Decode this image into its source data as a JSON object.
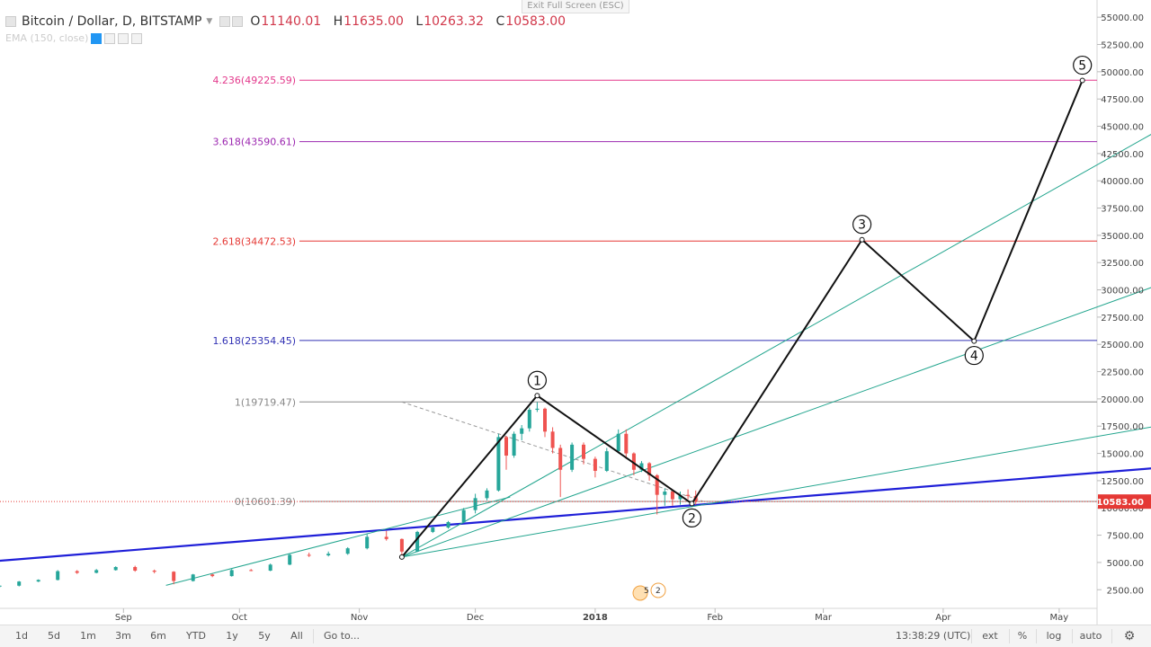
{
  "header": {
    "symbol": "Bitcoin / Dollar, D, BITSTAMP",
    "open_label": "O",
    "open": "11140.01",
    "high_label": "H",
    "high": "11635.00",
    "low_label": "L",
    "low": "10263.32",
    "close_label": "C",
    "close": "10583.00",
    "indicator": "EMA (150, close)",
    "exit_fullscreen": "Exit Full Screen (ESC)"
  },
  "toolbar": {
    "ranges": [
      "1d",
      "5d",
      "1m",
      "3m",
      "6m",
      "YTD",
      "1y",
      "5y",
      "All"
    ],
    "goto": "Go to...",
    "clock": "13:38:29 (UTC)",
    "options": [
      "ext",
      "%",
      "log",
      "auto"
    ],
    "settings_icon": "gear-icon"
  },
  "colors": {
    "up": "#26a69a",
    "down": "#ef5350",
    "trend": "#1f1fd8",
    "fan": "#22a58e",
    "fib_4236": "#e3398c",
    "fib_3618": "#9c27b0",
    "fib_2618": "#e53935",
    "fib_1618": "#3232b4",
    "fib_1": "#888888",
    "fib_0": "#888888",
    "price_tag": "#e53935"
  },
  "chart_data": {
    "type": "line",
    "title": "Bitcoin / Dollar, D, BITSTAMP",
    "y_ticks": [
      "55000.00",
      "52500.00",
      "50000.00",
      "47500.00",
      "45000.00",
      "42500.00",
      "40000.00",
      "37500.00",
      "35000.00",
      "32500.00",
      "30000.00",
      "27500.00",
      "25000.00",
      "22500.00",
      "20000.00",
      "17500.00",
      "15000.00",
      "12500.00",
      "10000.00",
      "7500.00",
      "5000.00",
      "2500.00"
    ],
    "ylim": [
      0,
      56250
    ],
    "x_ticks": [
      "Sep",
      "Oct",
      "Nov",
      "Dec",
      "2018",
      "Feb",
      "Mar",
      "Apr",
      "May"
    ],
    "last_price": "10583.00",
    "fib_levels": [
      {
        "label": "4.236(49225.59)",
        "value": 49225.59,
        "color_key": "fib_4236"
      },
      {
        "label": "3.618(43590.61)",
        "value": 43590.61,
        "color_key": "fib_3618"
      },
      {
        "label": "2.618(34472.53)",
        "value": 34472.53,
        "color_key": "fib_2618"
      },
      {
        "label": "1.618(25354.45)",
        "value": 25354.45,
        "color_key": "fib_1618"
      },
      {
        "label": "1(19719.47)",
        "value": 19719.47,
        "color_key": "fib_1"
      },
      {
        "label": "0(10601.39)",
        "value": 10601.39,
        "color_key": "fib_0"
      }
    ],
    "wave_points": [
      {
        "label": "",
        "date": "2017-11-12",
        "value": 5500
      },
      {
        "label": "1",
        "date": "2017-12-17",
        "value": 20300
      },
      {
        "label": "2",
        "date": "2018-01-26",
        "value": 10400
      },
      {
        "label": "3",
        "date": "2018-03-11",
        "value": 34600
      },
      {
        "label": "4",
        "date": "2018-04-09",
        "value": 25300
      },
      {
        "label": "5",
        "date": "2018-05-07",
        "value": 49200
      }
    ],
    "trendlines": [
      {
        "kind": "support",
        "from": {
          "date": "2017-07-29",
          "value": 5100
        },
        "to": {
          "date": "2018-05-31",
          "value": 13800
        }
      },
      {
        "kind": "fan",
        "from": {
          "date": "2017-11-12",
          "value": 5500
        },
        "to": {
          "date": "2018-05-31",
          "value": 45500
        }
      },
      {
        "kind": "fan",
        "from": {
          "date": "2017-11-12",
          "value": 5500
        },
        "to": {
          "date": "2018-05-31",
          "value": 31000
        }
      },
      {
        "kind": "fan",
        "from": {
          "date": "2017-11-12",
          "value": 5500
        },
        "to": {
          "date": "2018-05-31",
          "value": 17800
        }
      },
      {
        "kind": "channel",
        "from": {
          "date": "2017-09-12",
          "value": 2900
        },
        "to": {
          "date": "2017-12-10",
          "value": 11000
        }
      }
    ],
    "dashed_line": {
      "from": {
        "date": "2017-11-12",
        "value": 19719.47
      },
      "to": {
        "date": "2018-01-29",
        "value": 10600
      }
    },
    "candles": [
      {
        "date": "2017-07-31",
        "o": 2800,
        "h": 2900,
        "l": 2700,
        "c": 2870
      },
      {
        "date": "2017-08-05",
        "o": 2870,
        "h": 3300,
        "l": 2800,
        "c": 3250
      },
      {
        "date": "2017-08-10",
        "o": 3250,
        "h": 3450,
        "l": 3200,
        "c": 3400
      },
      {
        "date": "2017-08-15",
        "o": 3400,
        "h": 4300,
        "l": 3350,
        "c": 4200
      },
      {
        "date": "2017-08-20",
        "o": 4200,
        "h": 4300,
        "l": 3950,
        "c": 4050
      },
      {
        "date": "2017-08-25",
        "o": 4050,
        "h": 4400,
        "l": 4000,
        "c": 4300
      },
      {
        "date": "2017-08-30",
        "o": 4300,
        "h": 4650,
        "l": 4250,
        "c": 4580
      },
      {
        "date": "2017-09-04",
        "o": 4580,
        "h": 4700,
        "l": 4150,
        "c": 4250
      },
      {
        "date": "2017-09-09",
        "o": 4250,
        "h": 4350,
        "l": 4000,
        "c": 4150
      },
      {
        "date": "2017-09-14",
        "o": 4150,
        "h": 4200,
        "l": 3000,
        "c": 3300
      },
      {
        "date": "2017-09-19",
        "o": 3300,
        "h": 3950,
        "l": 3250,
        "c": 3900
      },
      {
        "date": "2017-09-24",
        "o": 3900,
        "h": 3950,
        "l": 3650,
        "c": 3750
      },
      {
        "date": "2017-09-29",
        "o": 3750,
        "h": 4400,
        "l": 3700,
        "c": 4300
      },
      {
        "date": "2017-10-04",
        "o": 4300,
        "h": 4400,
        "l": 4200,
        "c": 4250
      },
      {
        "date": "2017-10-09",
        "o": 4250,
        "h": 4900,
        "l": 4200,
        "c": 4800
      },
      {
        "date": "2017-10-14",
        "o": 4800,
        "h": 5800,
        "l": 4750,
        "c": 5700
      },
      {
        "date": "2017-10-19",
        "o": 5700,
        "h": 5900,
        "l": 5500,
        "c": 5650
      },
      {
        "date": "2017-10-24",
        "o": 5650,
        "h": 6000,
        "l": 5550,
        "c": 5800
      },
      {
        "date": "2017-10-29",
        "o": 5800,
        "h": 6400,
        "l": 5700,
        "c": 6300
      },
      {
        "date": "2017-11-03",
        "o": 6300,
        "h": 7600,
        "l": 6200,
        "c": 7350
      },
      {
        "date": "2017-11-08",
        "o": 7350,
        "h": 7900,
        "l": 7000,
        "c": 7150
      },
      {
        "date": "2017-11-12",
        "o": 7150,
        "h": 7200,
        "l": 5550,
        "c": 6000
      },
      {
        "date": "2017-11-16",
        "o": 6000,
        "h": 7900,
        "l": 5950,
        "c": 7800
      },
      {
        "date": "2017-11-20",
        "o": 7800,
        "h": 8300,
        "l": 7700,
        "c": 8200
      },
      {
        "date": "2017-11-24",
        "o": 8200,
        "h": 8800,
        "l": 8100,
        "c": 8700
      },
      {
        "date": "2017-11-28",
        "o": 8700,
        "h": 10000,
        "l": 8600,
        "c": 9800
      },
      {
        "date": "2017-12-01",
        "o": 9800,
        "h": 11300,
        "l": 9500,
        "c": 10900
      },
      {
        "date": "2017-12-04",
        "o": 10900,
        "h": 11800,
        "l": 10700,
        "c": 11600
      },
      {
        "date": "2017-12-07",
        "o": 11600,
        "h": 16800,
        "l": 11500,
        "c": 16500
      },
      {
        "date": "2017-12-09",
        "o": 16500,
        "h": 16600,
        "l": 13500,
        "c": 14800
      },
      {
        "date": "2017-12-11",
        "o": 14800,
        "h": 17000,
        "l": 14600,
        "c": 16800
      },
      {
        "date": "2017-12-13",
        "o": 16800,
        "h": 17600,
        "l": 16200,
        "c": 17300
      },
      {
        "date": "2017-12-15",
        "o": 17300,
        "h": 19200,
        "l": 17000,
        "c": 19000
      },
      {
        "date": "2017-12-17",
        "o": 19000,
        "h": 19700,
        "l": 18800,
        "c": 19100
      },
      {
        "date": "2017-12-19",
        "o": 19100,
        "h": 19200,
        "l": 16500,
        "c": 17000
      },
      {
        "date": "2017-12-21",
        "o": 17000,
        "h": 17400,
        "l": 15000,
        "c": 15500
      },
      {
        "date": "2017-12-23",
        "o": 15500,
        "h": 15800,
        "l": 11000,
        "c": 13500
      },
      {
        "date": "2017-12-26",
        "o": 13500,
        "h": 16000,
        "l": 13300,
        "c": 15800
      },
      {
        "date": "2017-12-29",
        "o": 15800,
        "h": 16000,
        "l": 14000,
        "c": 14500
      },
      {
        "date": "2018-01-01",
        "o": 14500,
        "h": 14700,
        "l": 12800,
        "c": 13400
      },
      {
        "date": "2018-01-04",
        "o": 13400,
        "h": 15500,
        "l": 13300,
        "c": 15200
      },
      {
        "date": "2018-01-07",
        "o": 15200,
        "h": 17200,
        "l": 15000,
        "c": 16800
      },
      {
        "date": "2018-01-09",
        "o": 16800,
        "h": 17200,
        "l": 14500,
        "c": 15000
      },
      {
        "date": "2018-01-11",
        "o": 15000,
        "h": 15100,
        "l": 13000,
        "c": 13500
      },
      {
        "date": "2018-01-13",
        "o": 13500,
        "h": 14300,
        "l": 13300,
        "c": 14100
      },
      {
        "date": "2018-01-15",
        "o": 14100,
        "h": 14200,
        "l": 12500,
        "c": 13000
      },
      {
        "date": "2018-01-17",
        "o": 13000,
        "h": 13100,
        "l": 9400,
        "c": 11200
      },
      {
        "date": "2018-01-19",
        "o": 11200,
        "h": 11800,
        "l": 10200,
        "c": 11500
      },
      {
        "date": "2018-01-21",
        "o": 11500,
        "h": 11600,
        "l": 10200,
        "c": 10800
      },
      {
        "date": "2018-01-23",
        "o": 10800,
        "h": 11500,
        "l": 10300,
        "c": 11200
      },
      {
        "date": "2018-01-25",
        "o": 11200,
        "h": 11700,
        "l": 10800,
        "c": 11100
      },
      {
        "date": "2018-01-27",
        "o": 11100,
        "h": 11600,
        "l": 10300,
        "c": 10583
      }
    ]
  }
}
